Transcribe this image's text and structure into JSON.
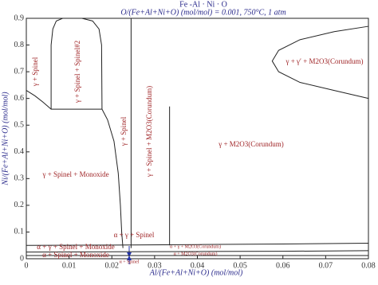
{
  "chart_data": {
    "type": "line",
    "title": "Fe -Al · Ni · O",
    "subtitle": "O/(Fe+Al+Ni+O) (mol/mol) = 0.001, 750°C, 1 atm",
    "x_label": "Al/(Fe+Al+Ni+O) (mol/mol)",
    "y_label": "Ni/(Fe+Al+Ni+O) (mol/mol)",
    "xlim": [
      0,
      0.08
    ],
    "ylim": [
      0,
      0.9
    ],
    "xticks": [
      0,
      0.01,
      0.02,
      0.03,
      0.04,
      0.05,
      0.06,
      0.07,
      0.08
    ],
    "yticks": [
      0,
      0.1,
      0.2,
      0.3,
      0.4,
      0.5,
      0.6,
      0.7,
      0.8,
      0.9
    ],
    "color": "#222222",
    "series": [
      {
        "x": [
          0,
          0.002,
          0.004,
          0.0058,
          0.0177
        ],
        "values": [
          0.63,
          0.61,
          0.585,
          0.56,
          0.56
        ]
      },
      {
        "x": [
          0.0177,
          0.019,
          0.0205,
          0.0215,
          0.022,
          0.0223,
          0.0225,
          0.0226
        ],
        "values": [
          0.56,
          0.52,
          0.44,
          0.32,
          0.2,
          0.1,
          0.06,
          0.04
        ]
      },
      {
        "x": [
          0.0058,
          0.0058,
          0.0062,
          0.007,
          0.0085,
          0.013,
          0.0155,
          0.017,
          0.0176,
          0.0177
        ],
        "values": [
          0.56,
          0.8,
          0.86,
          0.89,
          0.9,
          0.9,
          0.89,
          0.86,
          0.8,
          0.56
        ]
      },
      {
        "x": [
          0.0245,
          0.0245
        ],
        "values": [
          0.9,
          0.04
        ]
      },
      {
        "x": [
          0.0335,
          0.0335
        ],
        "values": [
          0.57,
          0.05
        ]
      },
      {
        "x": [
          0.08,
          0.072,
          0.064,
          0.059,
          0.0575,
          0.059,
          0.064,
          0.072,
          0.08
        ],
        "values": [
          0.87,
          0.85,
          0.82,
          0.78,
          0.74,
          0.7,
          0.66,
          0.63,
          0.6
        ]
      },
      {
        "x": [
          0,
          0.02,
          0.04,
          0.06,
          0.08
        ],
        "values": [
          0.05,
          0.051,
          0.053,
          0.055,
          0.058
        ]
      },
      {
        "x": [
          0,
          0.02,
          0.04,
          0.06,
          0.08
        ],
        "values": [
          0.025,
          0.026,
          0.027,
          0.028,
          0.03
        ]
      },
      {
        "x": [
          0,
          0.02,
          0.04,
          0.06,
          0.08
        ],
        "values": [
          0.012,
          0.012,
          0.012,
          0.012,
          0.012
        ]
      }
    ],
    "annotations": [
      "γ + Spinel",
      "γ + Spinel + Spinel#2",
      "γ + Spinel",
      "γ + Spinel + M2O3(Corundum)",
      "γ + M2O3(Corundum)",
      "γ + γ′ + M2O3(Corundum)",
      "γ + Spinel + Monoxide",
      "α + γ + Spinel",
      "α + γ + Spinel + Monoxide",
      "α + Spinel + Monoxide",
      "α + γ + M2O3(Corundum)",
      "α + M2O3(Corundum)",
      "α + Spinel"
    ]
  }
}
